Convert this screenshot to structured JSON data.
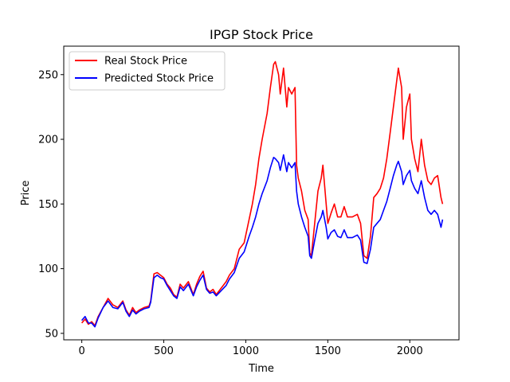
{
  "chart_data": {
    "type": "line",
    "title": "IPGP Stock Price",
    "xlabel": "Time",
    "ylabel": "Price",
    "xlim": [
      -110,
      2300
    ],
    "ylim": [
      45,
      272
    ],
    "xticks": [
      0,
      500,
      1000,
      1500,
      2000
    ],
    "yticks": [
      50,
      100,
      150,
      200,
      250
    ],
    "grid": false,
    "legend": "top-left",
    "series": [
      {
        "name": "Real Stock Price",
        "color": "#ff0000",
        "points": [
          [
            0,
            58
          ],
          [
            20,
            61
          ],
          [
            40,
            57
          ],
          [
            60,
            59
          ],
          [
            80,
            56
          ],
          [
            100,
            63
          ],
          [
            130,
            70
          ],
          [
            160,
            77
          ],
          [
            190,
            72
          ],
          [
            220,
            70
          ],
          [
            250,
            75
          ],
          [
            270,
            68
          ],
          [
            290,
            64
          ],
          [
            310,
            70
          ],
          [
            330,
            66
          ],
          [
            350,
            68
          ],
          [
            380,
            70
          ],
          [
            410,
            71
          ],
          [
            420,
            75
          ],
          [
            440,
            96
          ],
          [
            460,
            97
          ],
          [
            480,
            95
          ],
          [
            500,
            93
          ],
          [
            520,
            88
          ],
          [
            540,
            85
          ],
          [
            560,
            80
          ],
          [
            580,
            78
          ],
          [
            600,
            88
          ],
          [
            620,
            85
          ],
          [
            650,
            90
          ],
          [
            680,
            80
          ],
          [
            700,
            88
          ],
          [
            720,
            94
          ],
          [
            740,
            98
          ],
          [
            760,
            85
          ],
          [
            780,
            82
          ],
          [
            800,
            84
          ],
          [
            820,
            80
          ],
          [
            850,
            85
          ],
          [
            880,
            90
          ],
          [
            900,
            95
          ],
          [
            930,
            100
          ],
          [
            960,
            115
          ],
          [
            990,
            120
          ],
          [
            1020,
            138
          ],
          [
            1040,
            150
          ],
          [
            1060,
            165
          ],
          [
            1080,
            185
          ],
          [
            1100,
            200
          ],
          [
            1130,
            220
          ],
          [
            1150,
            240
          ],
          [
            1170,
            258
          ],
          [
            1180,
            260
          ],
          [
            1200,
            250
          ],
          [
            1210,
            235
          ],
          [
            1230,
            255
          ],
          [
            1250,
            225
          ],
          [
            1260,
            240
          ],
          [
            1280,
            235
          ],
          [
            1300,
            240
          ],
          [
            1310,
            180
          ],
          [
            1320,
            170
          ],
          [
            1340,
            160
          ],
          [
            1360,
            145
          ],
          [
            1380,
            138
          ],
          [
            1390,
            112
          ],
          [
            1400,
            110
          ],
          [
            1420,
            135
          ],
          [
            1440,
            160
          ],
          [
            1460,
            170
          ],
          [
            1470,
            180
          ],
          [
            1490,
            150
          ],
          [
            1500,
            135
          ],
          [
            1520,
            143
          ],
          [
            1540,
            150
          ],
          [
            1560,
            140
          ],
          [
            1580,
            140
          ],
          [
            1600,
            148
          ],
          [
            1620,
            140
          ],
          [
            1650,
            140
          ],
          [
            1680,
            142
          ],
          [
            1700,
            135
          ],
          [
            1720,
            110
          ],
          [
            1740,
            108
          ],
          [
            1760,
            125
          ],
          [
            1780,
            155
          ],
          [
            1800,
            158
          ],
          [
            1820,
            162
          ],
          [
            1840,
            170
          ],
          [
            1860,
            185
          ],
          [
            1880,
            205
          ],
          [
            1900,
            225
          ],
          [
            1920,
            245
          ],
          [
            1930,
            255
          ],
          [
            1950,
            240
          ],
          [
            1960,
            200
          ],
          [
            1980,
            225
          ],
          [
            2000,
            235
          ],
          [
            2010,
            200
          ],
          [
            2030,
            185
          ],
          [
            2050,
            175
          ],
          [
            2070,
            200
          ],
          [
            2090,
            180
          ],
          [
            2110,
            168
          ],
          [
            2130,
            165
          ],
          [
            2150,
            170
          ],
          [
            2170,
            172
          ],
          [
            2190,
            155
          ],
          [
            2200,
            150
          ]
        ]
      },
      {
        "name": "Predicted Stock Price",
        "color": "#0000ff",
        "points": [
          [
            0,
            60
          ],
          [
            20,
            63
          ],
          [
            40,
            58
          ],
          [
            60,
            58
          ],
          [
            80,
            55
          ],
          [
            100,
            62
          ],
          [
            130,
            70
          ],
          [
            160,
            75
          ],
          [
            190,
            70
          ],
          [
            220,
            69
          ],
          [
            250,
            74
          ],
          [
            270,
            67
          ],
          [
            290,
            63
          ],
          [
            310,
            68
          ],
          [
            330,
            65
          ],
          [
            350,
            67
          ],
          [
            380,
            69
          ],
          [
            410,
            70
          ],
          [
            420,
            74
          ],
          [
            440,
            93
          ],
          [
            460,
            95
          ],
          [
            480,
            93
          ],
          [
            500,
            92
          ],
          [
            520,
            87
          ],
          [
            540,
            83
          ],
          [
            560,
            79
          ],
          [
            580,
            77
          ],
          [
            600,
            86
          ],
          [
            620,
            83
          ],
          [
            650,
            88
          ],
          [
            680,
            79
          ],
          [
            700,
            86
          ],
          [
            720,
            91
          ],
          [
            740,
            95
          ],
          [
            760,
            84
          ],
          [
            780,
            81
          ],
          [
            800,
            82
          ],
          [
            820,
            79
          ],
          [
            850,
            83
          ],
          [
            880,
            87
          ],
          [
            900,
            92
          ],
          [
            930,
            97
          ],
          [
            960,
            108
          ],
          [
            990,
            113
          ],
          [
            1020,
            125
          ],
          [
            1040,
            132
          ],
          [
            1060,
            140
          ],
          [
            1080,
            150
          ],
          [
            1100,
            158
          ],
          [
            1130,
            168
          ],
          [
            1150,
            178
          ],
          [
            1170,
            186
          ],
          [
            1180,
            185
          ],
          [
            1200,
            182
          ],
          [
            1210,
            176
          ],
          [
            1230,
            188
          ],
          [
            1250,
            175
          ],
          [
            1260,
            182
          ],
          [
            1280,
            178
          ],
          [
            1300,
            182
          ],
          [
            1310,
            160
          ],
          [
            1320,
            150
          ],
          [
            1340,
            140
          ],
          [
            1360,
            132
          ],
          [
            1380,
            125
          ],
          [
            1390,
            110
          ],
          [
            1400,
            108
          ],
          [
            1420,
            122
          ],
          [
            1440,
            135
          ],
          [
            1460,
            140
          ],
          [
            1470,
            145
          ],
          [
            1490,
            132
          ],
          [
            1500,
            123
          ],
          [
            1520,
            128
          ],
          [
            1540,
            130
          ],
          [
            1560,
            125
          ],
          [
            1580,
            124
          ],
          [
            1600,
            130
          ],
          [
            1620,
            124
          ],
          [
            1650,
            124
          ],
          [
            1680,
            126
          ],
          [
            1700,
            122
          ],
          [
            1720,
            105
          ],
          [
            1740,
            104
          ],
          [
            1760,
            115
          ],
          [
            1780,
            132
          ],
          [
            1800,
            135
          ],
          [
            1820,
            138
          ],
          [
            1840,
            145
          ],
          [
            1860,
            152
          ],
          [
            1880,
            162
          ],
          [
            1900,
            172
          ],
          [
            1920,
            180
          ],
          [
            1930,
            183
          ],
          [
            1950,
            175
          ],
          [
            1960,
            165
          ],
          [
            1980,
            172
          ],
          [
            2000,
            176
          ],
          [
            2010,
            168
          ],
          [
            2030,
            162
          ],
          [
            2050,
            158
          ],
          [
            2070,
            168
          ],
          [
            2090,
            155
          ],
          [
            2110,
            145
          ],
          [
            2130,
            142
          ],
          [
            2150,
            145
          ],
          [
            2170,
            142
          ],
          [
            2190,
            132
          ],
          [
            2200,
            138
          ]
        ]
      }
    ]
  }
}
